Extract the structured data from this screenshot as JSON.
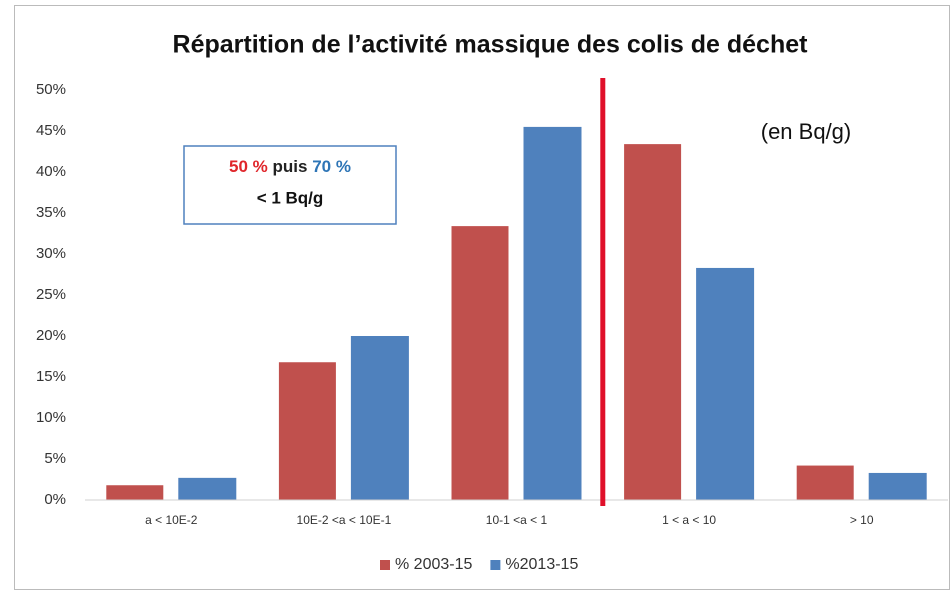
{
  "chart_data": {
    "type": "bar",
    "title": "Répartition de l’activité massique des colis de déchet",
    "categories": [
      "a < 10E-2",
      "10E-2 <a < 10E-1",
      "10-1 <a < 1",
      "1 < a < 10",
      "> 10"
    ],
    "series": [
      {
        "name": "% 2003-15",
        "color": "#c0504d",
        "values": [
          1.8,
          16.8,
          33.4,
          43.4,
          4.2
        ]
      },
      {
        "name": "%2013-15",
        "color": "#4f81bd",
        "values": [
          2.7,
          20.0,
          45.5,
          28.3,
          3.3
        ]
      }
    ],
    "ylim": [
      0,
      50
    ],
    "yticks": [
      {
        "value": 0,
        "label": "0%"
      },
      {
        "value": 5,
        "label": "5%"
      },
      {
        "value": 10,
        "label": "10%"
      },
      {
        "value": 15,
        "label": "15%"
      },
      {
        "value": 20,
        "label": "20%"
      },
      {
        "value": 25,
        "label": "25%"
      },
      {
        "value": 30,
        "label": "30%"
      },
      {
        "value": 35,
        "label": "35%"
      },
      {
        "value": 40,
        "label": "40%"
      },
      {
        "value": 45,
        "label": "45%"
      },
      {
        "value": 50,
        "label": "50%"
      }
    ],
    "grid": false,
    "legend": "bottom",
    "annotations": {
      "box": [
        "50 %",
        "puis",
        "70 %",
        "< 1 Bq/g"
      ],
      "unit": "(en Bq/g)"
    }
  }
}
